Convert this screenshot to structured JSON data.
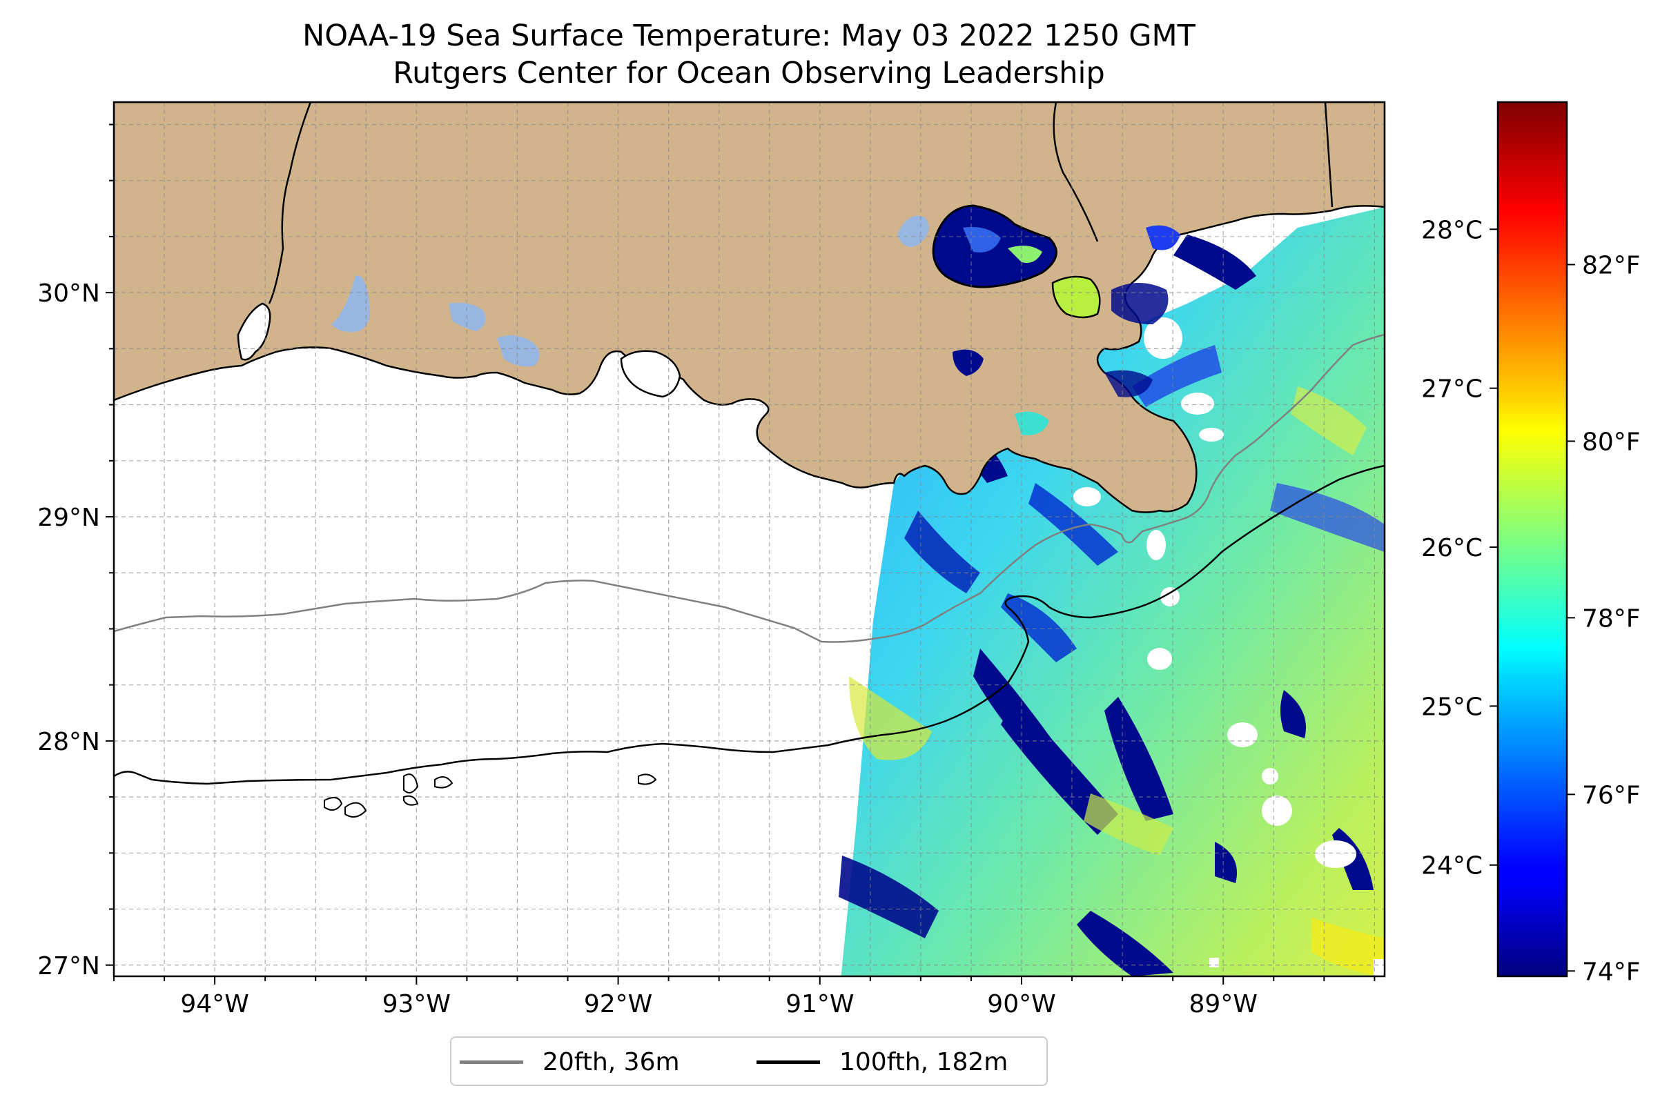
{
  "title": {
    "line1": "NOAA-19 Sea Surface Temperature: May 03 2022 1250 GMT",
    "line2": "Rutgers Center for Ocean Observing Leadership"
  },
  "map": {
    "lon_range": [
      -94.5,
      -88.2
    ],
    "lat_range": [
      26.95,
      30.85
    ],
    "lon_ticks": [
      {
        "value": -94,
        "label": "94°W"
      },
      {
        "value": -93,
        "label": "93°W"
      },
      {
        "value": -92,
        "label": "92°W"
      },
      {
        "value": -91,
        "label": "91°W"
      },
      {
        "value": -90,
        "label": "90°W"
      },
      {
        "value": -89,
        "label": "89°W"
      }
    ],
    "lat_ticks": [
      {
        "value": 30,
        "label": "30°N"
      },
      {
        "value": 29,
        "label": "29°N"
      },
      {
        "value": 28,
        "label": "28°N"
      },
      {
        "value": 27,
        "label": "27°N"
      }
    ],
    "grid": true,
    "land_color": "#d2b48c",
    "lake_color": "#97b6e1"
  },
  "colorbar": {
    "colormap": "jet",
    "range_c": [
      23.3,
      28.8
    ],
    "celsius_ticks": [
      {
        "value": 28,
        "label": "28°C"
      },
      {
        "value": 27,
        "label": "27°C"
      },
      {
        "value": 26,
        "label": "26°C"
      },
      {
        "value": 25,
        "label": "25°C"
      },
      {
        "value": 24,
        "label": "24°C"
      }
    ],
    "fahrenheit_ticks": [
      {
        "value": 82,
        "label": "82°F"
      },
      {
        "value": 80,
        "label": "80°F"
      },
      {
        "value": 78,
        "label": "78°F"
      },
      {
        "value": 76,
        "label": "76°F"
      },
      {
        "value": 74,
        "label": "74°F"
      }
    ]
  },
  "legend": {
    "placement": "bottom-center",
    "items": [
      {
        "label": "20fth, 36m",
        "color": "#808080"
      },
      {
        "label": "100fth, 182m",
        "color": "#000000"
      }
    ]
  }
}
